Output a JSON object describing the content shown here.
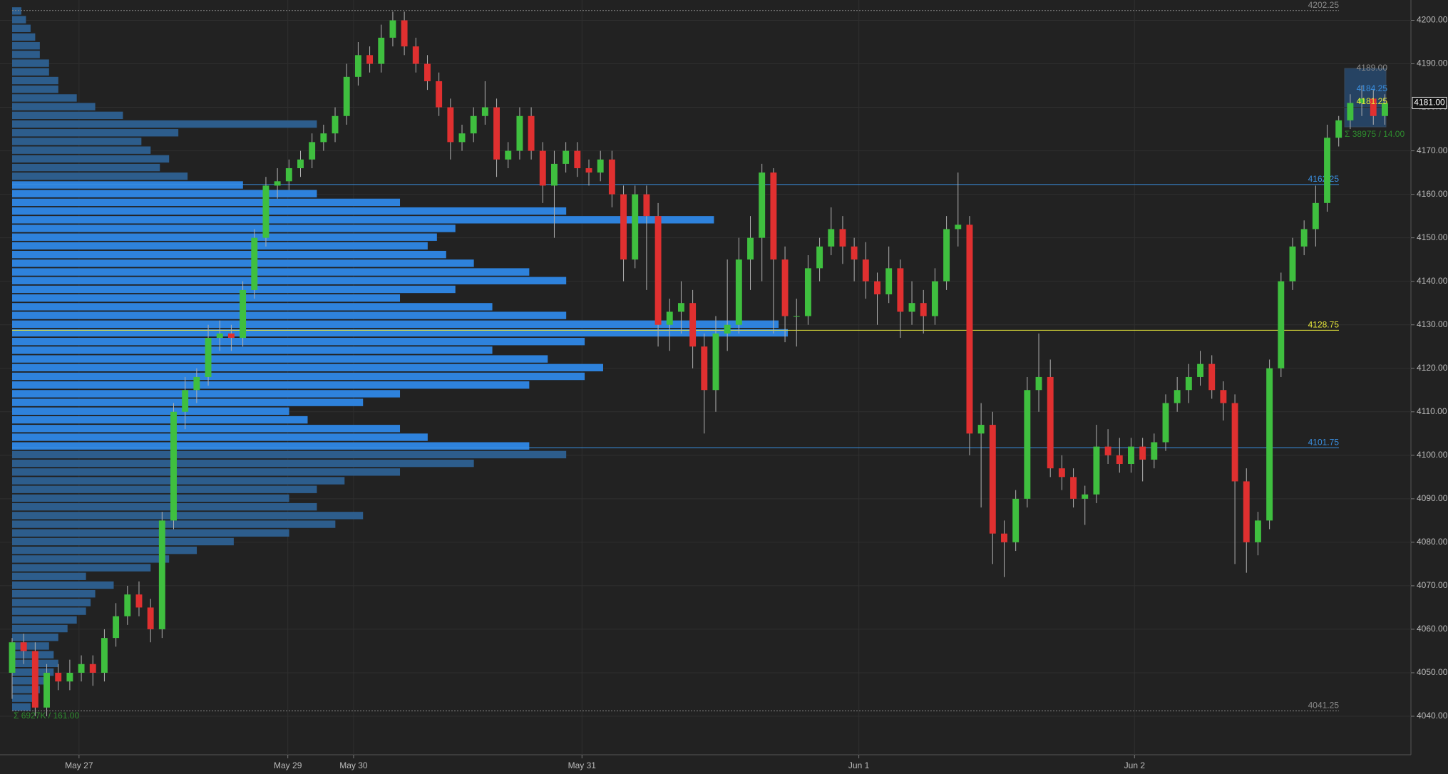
{
  "chart_data": {
    "type": "candlestick",
    "background": "#222222",
    "up_color": "#3fbf3f",
    "down_color": "#e03030",
    "ylim": [
      4031.15,
      4204.67
    ],
    "yticks": [
      {
        "value": 4040,
        "label": "4040.00"
      },
      {
        "value": 4050,
        "label": "4050.00"
      },
      {
        "value": 4060,
        "label": "4060.00"
      },
      {
        "value": 4070,
        "label": "4070.00"
      },
      {
        "value": 4080,
        "label": "4080.00"
      },
      {
        "value": 4090,
        "label": "4090.00"
      },
      {
        "value": 4100,
        "label": "4100.00"
      },
      {
        "value": 4110,
        "label": "4110.00"
      },
      {
        "value": 4120,
        "label": "4120.00"
      },
      {
        "value": 4130,
        "label": "4130.00"
      },
      {
        "value": 4140,
        "label": "4140.00"
      },
      {
        "value": 4150,
        "label": "4150.00"
      },
      {
        "value": 4160,
        "label": "4160.00"
      },
      {
        "value": 4170,
        "label": "4170.00"
      },
      {
        "value": 4180,
        "label": "4180.00"
      },
      {
        "value": 4190,
        "label": "4190.00"
      },
      {
        "value": 4200,
        "label": "4200.00"
      }
    ],
    "xlim": [
      -1.05,
      121.26
    ],
    "xticks": [
      {
        "value": 5.8,
        "label": "May 27"
      },
      {
        "value": 23.9,
        "label": "May 29"
      },
      {
        "value": 29.6,
        "label": "May 30"
      },
      {
        "value": 49.4,
        "label": "May 31"
      },
      {
        "value": 73.4,
        "label": "Jun 1"
      },
      {
        "value": 97.3,
        "label": "Jun 2"
      }
    ],
    "candles": [
      [
        4050,
        4058,
        4044,
        4057
      ],
      [
        4057,
        4059,
        4052,
        4055
      ],
      [
        4055,
        4057,
        4040,
        4042
      ],
      [
        4042,
        4052,
        4040,
        4050
      ],
      [
        4050,
        4052,
        4046,
        4048
      ],
      [
        4048,
        4053,
        4046,
        4050
      ],
      [
        4050,
        4054,
        4048,
        4052
      ],
      [
        4052,
        4054,
        4047,
        4050
      ],
      [
        4050,
        4060,
        4048,
        4058
      ],
      [
        4058,
        4066,
        4056,
        4063
      ],
      [
        4063,
        4070,
        4061,
        4068
      ],
      [
        4068,
        4071,
        4063,
        4065
      ],
      [
        4065,
        4067,
        4057,
        4060
      ],
      [
        4060,
        4087,
        4058,
        4085
      ],
      [
        4085,
        4112,
        4083,
        4110
      ],
      [
        4110,
        4118,
        4106,
        4115
      ],
      [
        4115,
        4120,
        4112,
        4118
      ],
      [
        4118,
        4130,
        4116,
        4127
      ],
      [
        4127,
        4131,
        4124,
        4128
      ],
      [
        4128,
        4130,
        4124,
        4127
      ],
      [
        4127,
        4140,
        4125,
        4138
      ],
      [
        4138,
        4152,
        4136,
        4150
      ],
      [
        4150,
        4164,
        4148,
        4162
      ],
      [
        4162,
        4166,
        4159,
        4163
      ],
      [
        4163,
        4168,
        4161,
        4166
      ],
      [
        4166,
        4170,
        4164,
        4168
      ],
      [
        4168,
        4174,
        4166,
        4172
      ],
      [
        4172,
        4176,
        4170,
        4174
      ],
      [
        4174,
        4180,
        4172,
        4178
      ],
      [
        4178,
        4190,
        4176,
        4187
      ],
      [
        4187,
        4195,
        4185,
        4192
      ],
      [
        4192,
        4194,
        4188,
        4190
      ],
      [
        4190,
        4199,
        4188,
        4196
      ],
      [
        4196,
        4202,
        4194,
        4200
      ],
      [
        4200,
        4202,
        4192,
        4194
      ],
      [
        4194,
        4196,
        4188,
        4190
      ],
      [
        4190,
        4192,
        4184,
        4186
      ],
      [
        4186,
        4188,
        4178,
        4180
      ],
      [
        4180,
        4182,
        4168,
        4172
      ],
      [
        4172,
        4176,
        4170,
        4174
      ],
      [
        4174,
        4180,
        4172,
        4178
      ],
      [
        4178,
        4186,
        4176,
        4180
      ],
      [
        4180,
        4182,
        4164,
        4168
      ],
      [
        4168,
        4172,
        4166,
        4170
      ],
      [
        4170,
        4180,
        4168,
        4178
      ],
      [
        4178,
        4180,
        4168,
        4170
      ],
      [
        4170,
        4172,
        4158,
        4162
      ],
      [
        4162,
        4170,
        4150,
        4167
      ],
      [
        4167,
        4172,
        4165,
        4170
      ],
      [
        4170,
        4172,
        4164,
        4166
      ],
      [
        4166,
        4168,
        4162,
        4165
      ],
      [
        4165,
        4170,
        4163,
        4168
      ],
      [
        4168,
        4170,
        4157,
        4160
      ],
      [
        4160,
        4162,
        4140,
        4145
      ],
      [
        4145,
        4162,
        4143,
        4160
      ],
      [
        4160,
        4162,
        4138,
        4155
      ],
      [
        4155,
        4158,
        4125,
        4130
      ],
      [
        4130,
        4136,
        4124,
        4133
      ],
      [
        4133,
        4140,
        4128,
        4135
      ],
      [
        4135,
        4138,
        4120,
        4125
      ],
      [
        4125,
        4128,
        4105,
        4115
      ],
      [
        4115,
        4132,
        4110,
        4128
      ],
      [
        4128,
        4145,
        4124,
        4130
      ],
      [
        4130,
        4150,
        4128,
        4145
      ],
      [
        4145,
        4155,
        4138,
        4150
      ],
      [
        4150,
        4167,
        4140,
        4165
      ],
      [
        4165,
        4166,
        4128,
        4145
      ],
      [
        4145,
        4148,
        4126,
        4132
      ],
      [
        4132,
        4136,
        4125,
        4132
      ],
      [
        4132,
        4146,
        4130,
        4143
      ],
      [
        4143,
        4150,
        4140,
        4148
      ],
      [
        4148,
        4157,
        4146,
        4152
      ],
      [
        4152,
        4155,
        4144,
        4148
      ],
      [
        4148,
        4150,
        4140,
        4145
      ],
      [
        4145,
        4149,
        4136,
        4140
      ],
      [
        4140,
        4142,
        4130,
        4137
      ],
      [
        4137,
        4148,
        4135,
        4143
      ],
      [
        4143,
        4145,
        4127,
        4133
      ],
      [
        4133,
        4140,
        4130,
        4135
      ],
      [
        4135,
        4138,
        4128,
        4132
      ],
      [
        4132,
        4143,
        4130,
        4140
      ],
      [
        4140,
        4155,
        4138,
        4152
      ],
      [
        4152,
        4165,
        4148,
        4153
      ],
      [
        4153,
        4155,
        4100,
        4105
      ],
      [
        4105,
        4112,
        4088,
        4107
      ],
      [
        4107,
        4110,
        4075,
        4082
      ],
      [
        4082,
        4085,
        4072,
        4080
      ],
      [
        4080,
        4092,
        4078,
        4090
      ],
      [
        4090,
        4118,
        4088,
        4115
      ],
      [
        4115,
        4128,
        4110,
        4118
      ],
      [
        4118,
        4122,
        4095,
        4097
      ],
      [
        4097,
        4100,
        4092,
        4095
      ],
      [
        4095,
        4097,
        4088,
        4090
      ],
      [
        4090,
        4093,
        4084,
        4091
      ],
      [
        4091,
        4107,
        4089,
        4102
      ],
      [
        4102,
        4106,
        4098,
        4100
      ],
      [
        4100,
        4104,
        4096,
        4098
      ],
      [
        4098,
        4104,
        4096,
        4102
      ],
      [
        4102,
        4104,
        4094,
        4099
      ],
      [
        4099,
        4105,
        4097,
        4103
      ],
      [
        4103,
        4114,
        4101,
        4112
      ],
      [
        4112,
        4118,
        4110,
        4115
      ],
      [
        4115,
        4121,
        4112,
        4118
      ],
      [
        4118,
        4124,
        4116,
        4121
      ],
      [
        4121,
        4123,
        4113,
        4115
      ],
      [
        4115,
        4117,
        4108,
        4112
      ],
      [
        4112,
        4114,
        4075,
        4094
      ],
      [
        4094,
        4097,
        4073,
        4080
      ],
      [
        4080,
        4087,
        4077,
        4085
      ],
      [
        4085,
        4122,
        4083,
        4120
      ],
      [
        4120,
        4142,
        4118,
        4140
      ],
      [
        4140,
        4150,
        4138,
        4148
      ],
      [
        4148,
        4154,
        4146,
        4152
      ],
      [
        4152,
        4162,
        4148,
        4158
      ],
      [
        4158,
        4176,
        4156,
        4173
      ],
      [
        4173,
        4178,
        4171,
        4177
      ],
      [
        4177,
        4183,
        4175,
        4181
      ],
      [
        4181,
        4185,
        4178,
        4182
      ],
      [
        4182,
        4184,
        4176,
        4178
      ],
      [
        4178,
        4183,
        4176,
        4181
      ]
    ],
    "profile": {
      "value_area_color": "#2e82dc",
      "outer_color": "#2d5d8c",
      "prices": [
        4042,
        4044,
        4046,
        4048,
        4050,
        4052,
        4054,
        4056,
        4058,
        4060,
        4062,
        4064,
        4066,
        4068,
        4070,
        4072,
        4074,
        4076,
        4078,
        4080,
        4082,
        4084,
        4086,
        4088,
        4090,
        4092,
        4094,
        4096,
        4098,
        4100,
        4102,
        4104,
        4106,
        4108,
        4110,
        4112,
        4114,
        4116,
        4118,
        4120,
        4122,
        4124,
        4126,
        4128,
        4130,
        4132,
        4134,
        4136,
        4138,
        4140,
        4142,
        4144,
        4146,
        4148,
        4150,
        4152,
        4154,
        4156,
        4158,
        4160,
        4162,
        4164,
        4166,
        4168,
        4170,
        4172,
        4174,
        4176,
        4178,
        4180,
        4182,
        4184,
        4186,
        4188,
        4190,
        4192,
        4194,
        4196,
        4198,
        4200,
        4202
      ],
      "volumes": [
        20,
        25,
        30,
        40,
        45,
        50,
        45,
        40,
        50,
        60,
        70,
        80,
        85,
        90,
        110,
        80,
        150,
        170,
        200,
        240,
        300,
        350,
        380,
        330,
        300,
        330,
        360,
        420,
        500,
        600,
        560,
        450,
        420,
        320,
        300,
        380,
        420,
        560,
        620,
        640,
        580,
        520,
        620,
        840,
        830,
        600,
        520,
        420,
        480,
        600,
        560,
        500,
        470,
        450,
        460,
        480,
        760,
        600,
        420,
        330,
        250,
        190,
        160,
        170,
        150,
        140,
        180,
        330,
        120,
        90,
        70,
        50,
        50,
        40,
        40,
        30,
        30,
        25,
        20,
        15,
        10
      ]
    },
    "value_area": [
      4101.75,
      4162.25
    ],
    "levels": [
      {
        "value": 4202.25,
        "label": "4202.25",
        "color": "#8a8a8a"
      },
      {
        "value": 4162.25,
        "label": "4162.25",
        "color": "#3a8fe0"
      },
      {
        "value": 4128.75,
        "label": "4128.75",
        "color": "#e8e83a"
      },
      {
        "value": 4101.75,
        "label": "4101.75",
        "color": "#3a8fe0"
      },
      {
        "value": 4041.25,
        "label": "4041.25",
        "color": "#8a8a8a"
      }
    ],
    "mini_labels": [
      {
        "value": 4189,
        "label": "4189.00",
        "color": "#8a8a8a"
      },
      {
        "value": 4184.25,
        "label": "4184.25",
        "color": "#3a8fe0"
      },
      {
        "value": 4181.25,
        "label": "4181.25",
        "color": "#e8e83a"
      }
    ],
    "last_price": {
      "value": 4181,
      "label": "4181.00"
    },
    "sum_labels": [
      "Σ 6927K / 161.00",
      "Σ 38975 / 14.00"
    ]
  }
}
